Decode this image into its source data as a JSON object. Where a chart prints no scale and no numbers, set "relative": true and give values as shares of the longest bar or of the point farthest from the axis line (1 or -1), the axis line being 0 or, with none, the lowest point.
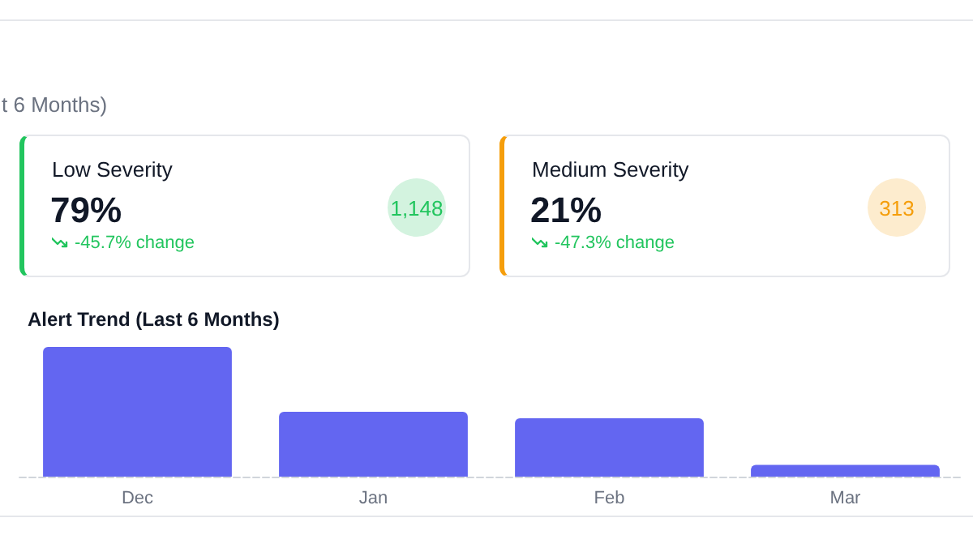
{
  "chart_data": [
    {
      "type": "other",
      "title": "t 6 Months)",
      "annotations": [
        "Low Severity",
        "79%",
        "-45.7% change",
        "1,148",
        "Medium Severity",
        "21%",
        "-47.3% change",
        "313"
      ],
      "colors": [
        "#22c55e",
        "#f59e0b"
      ]
    },
    {
      "type": "bar",
      "title": "Alert Trend (Last 6 Months)",
      "categories": [
        "Dec",
        "Jan",
        "Feb",
        "Mar"
      ],
      "values": [
        1,
        0.5,
        0.45,
        0.09
      ],
      "color": "#6366f1",
      "relative": true
    }
  ]
}
